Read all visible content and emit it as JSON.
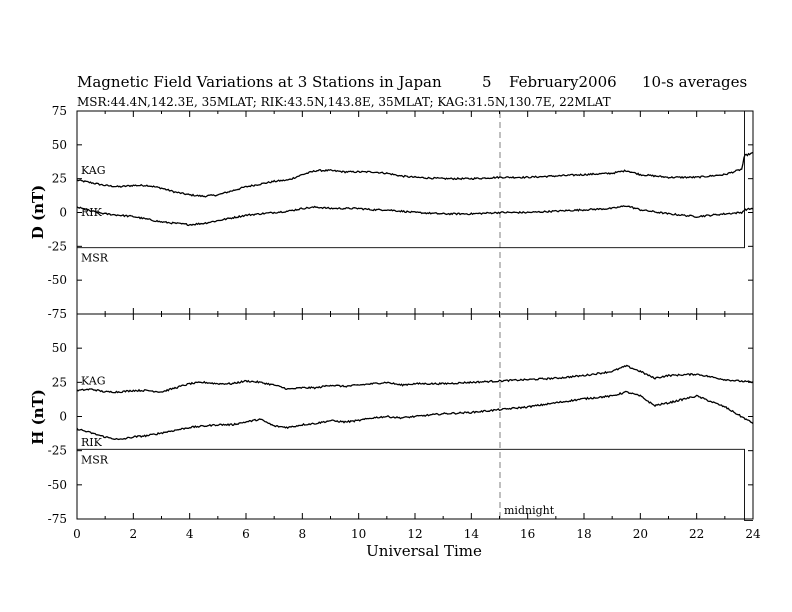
{
  "title_line": {
    "text": "Magnetic Field Variations at 3 Stations in Japan",
    "day": "5",
    "month_year": "February2006",
    "averaging": "10-s averages"
  },
  "subtitle": "MSR:44.4N,142.3E, 35MLAT;  RIK:43.5N,143.8E, 35MLAT;  KAG:31.5N,130.7E, 22MLAT",
  "annotation_midnight": "midnight",
  "chart_data": [
    {
      "type": "line",
      "panel": "top",
      "ylabel": "D (nT)",
      "xlabel": "",
      "xlim": [
        0,
        24
      ],
      "ylim": [
        -75,
        75
      ],
      "yticks": [
        "75",
        "50",
        "25",
        "0",
        "-25",
        "-50",
        "-75"
      ],
      "midnight_ut": 15,
      "series": [
        {
          "name": "KAG",
          "x": [
            0,
            0.5,
            1,
            1.5,
            2,
            2.5,
            3,
            3.5,
            4,
            4.5,
            5,
            5.5,
            6,
            6.5,
            7,
            7.5,
            8,
            8.5,
            9,
            9.5,
            10,
            10.5,
            11,
            11.5,
            12,
            13,
            14,
            15,
            16,
            17,
            18,
            19,
            19.5,
            20,
            21,
            22,
            23,
            23.6,
            23.7,
            24
          ],
          "y": [
            24,
            22,
            20,
            19,
            20,
            20,
            18,
            15,
            13,
            12,
            13,
            16,
            19,
            21,
            23,
            24,
            28,
            31,
            31,
            30,
            30,
            30,
            29,
            27,
            26,
            25,
            25,
            26,
            26,
            27,
            28,
            29,
            31,
            28,
            26,
            26,
            28,
            32,
            42,
            44
          ]
        },
        {
          "name": "RIK",
          "x": [
            0,
            0.5,
            1,
            1.5,
            2,
            2.5,
            3,
            3.5,
            4,
            4.5,
            5,
            5.5,
            6,
            6.5,
            7,
            7.5,
            8,
            8.5,
            9,
            9.5,
            10,
            10.5,
            11,
            11.5,
            12,
            13,
            14,
            15,
            16,
            17,
            18,
            19,
            19.5,
            20,
            21,
            22,
            23,
            23.6,
            23.7,
            24
          ],
          "y": [
            4,
            1,
            -1,
            -2,
            -3,
            -5,
            -7,
            -8,
            -9,
            -8,
            -6,
            -4,
            -2,
            -1,
            0,
            1,
            3,
            4,
            3,
            3,
            3,
            2,
            2,
            1,
            0,
            -1,
            -1,
            0,
            0,
            1,
            2,
            3,
            5,
            2,
            -1,
            -3,
            -1,
            0,
            2,
            3
          ]
        },
        {
          "name": "MSR",
          "x": [
            0,
            23.7,
            23.7,
            24
          ],
          "y": [
            -26,
            -26,
            75,
            75
          ]
        }
      ]
    },
    {
      "type": "line",
      "panel": "bottom",
      "ylabel": "H (nT)",
      "xlabel": "Universal Time",
      "xlim": [
        0,
        24
      ],
      "ylim": [
        -75,
        75
      ],
      "xticks": [
        "0",
        "2",
        "4",
        "6",
        "8",
        "10",
        "12",
        "14",
        "16",
        "18",
        "20",
        "22",
        "24"
      ],
      "yticks": [
        "75",
        "50",
        "25",
        "0",
        "-25",
        "-50",
        "-75"
      ],
      "midnight_ut": 15,
      "series": [
        {
          "name": "KAG",
          "x": [
            0,
            0.5,
            1,
            1.5,
            2,
            2.5,
            3,
            3.5,
            4,
            4.5,
            5,
            5.5,
            6,
            6.5,
            7,
            7.5,
            8,
            8.5,
            9,
            9.5,
            10,
            10.5,
            11,
            11.5,
            12,
            13,
            14,
            15,
            16,
            17,
            18,
            19,
            19.5,
            20,
            20.5,
            21,
            22,
            23,
            24
          ],
          "y": [
            19,
            20,
            18,
            18,
            19,
            19,
            18,
            21,
            24,
            25,
            24,
            24,
            26,
            25,
            23,
            20,
            21,
            21,
            23,
            22,
            23,
            24,
            25,
            23,
            24,
            24,
            25,
            26,
            27,
            28,
            30,
            33,
            37,
            33,
            28,
            30,
            31,
            27,
            25
          ]
        },
        {
          "name": "RIK",
          "x": [
            0,
            0.5,
            1,
            1.5,
            2,
            2.5,
            3,
            3.5,
            4,
            4.5,
            5,
            5.5,
            6,
            6.5,
            7,
            7.5,
            8,
            8.5,
            9,
            9.5,
            10,
            10.5,
            11,
            11.5,
            12,
            13,
            14,
            15,
            16,
            17,
            18,
            19,
            19.5,
            20,
            20.5,
            21,
            22,
            23,
            24
          ],
          "y": [
            -9,
            -12,
            -15,
            -17,
            -15,
            -14,
            -12,
            -10,
            -8,
            -7,
            -6,
            -6,
            -4,
            -2,
            -7,
            -8,
            -6,
            -5,
            -3,
            -4,
            -3,
            -1,
            0,
            -1,
            0,
            2,
            3,
            5,
            7,
            10,
            13,
            15,
            18,
            15,
            8,
            10,
            15,
            7,
            -5
          ]
        },
        {
          "name": "MSR",
          "x": [
            0,
            23.7,
            23.7,
            24
          ],
          "y": [
            -24,
            -24,
            -76,
            -76
          ]
        }
      ]
    }
  ]
}
